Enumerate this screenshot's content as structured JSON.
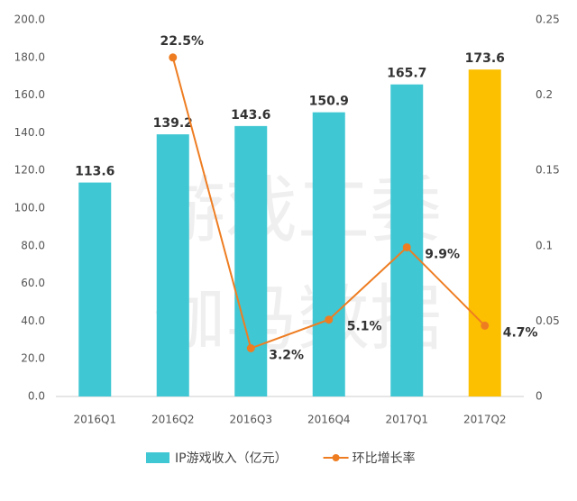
{
  "chart_data": {
    "type": "bar_line",
    "categories": [
      "2016Q1",
      "2016Q2",
      "2016Q3",
      "2016Q4",
      "2017Q1",
      "2017Q2"
    ],
    "series": [
      {
        "name": "IP游戏收入（亿元）",
        "type": "bar",
        "color": "#3fc7d3",
        "colors": [
          "#3fc7d3",
          "#3fc7d3",
          "#3fc7d3",
          "#3fc7d3",
          "#3fc7d3",
          "#fcc000"
        ],
        "values": [
          113.6,
          139.2,
          143.6,
          150.9,
          165.7,
          173.6
        ]
      },
      {
        "name": "环比增长率",
        "type": "line",
        "axis": "y2",
        "color": "#ee7d22",
        "values": [
          null,
          0.225,
          0.032,
          0.051,
          0.099,
          0.047
        ],
        "value_labels": [
          null,
          "22.5%",
          "3.2%",
          "5.1%",
          "9.9%",
          "4.7%"
        ]
      }
    ],
    "ylim": [
      0,
      200
    ],
    "yticks": [
      {
        "value": 0,
        "label": "0.0"
      },
      {
        "value": 20,
        "label": "20.0"
      },
      {
        "value": 40,
        "label": "40.0"
      },
      {
        "value": 60,
        "label": "60.0"
      },
      {
        "value": 80,
        "label": "80.0"
      },
      {
        "value": 100,
        "label": "100.0"
      },
      {
        "value": 120,
        "label": "120.0"
      },
      {
        "value": 140,
        "label": "140.0"
      },
      {
        "value": 160,
        "label": "160.0"
      },
      {
        "value": 180,
        "label": "180.0"
      },
      {
        "value": 200,
        "label": "200.0"
      }
    ],
    "y2lim": [
      0,
      0.25
    ],
    "y2ticks": [
      0,
      0.05,
      0.1,
      0.15,
      0.2,
      0.25
    ],
    "watermark": [
      "游戏工委",
      "伽马数据"
    ],
    "legend": "bottom"
  }
}
